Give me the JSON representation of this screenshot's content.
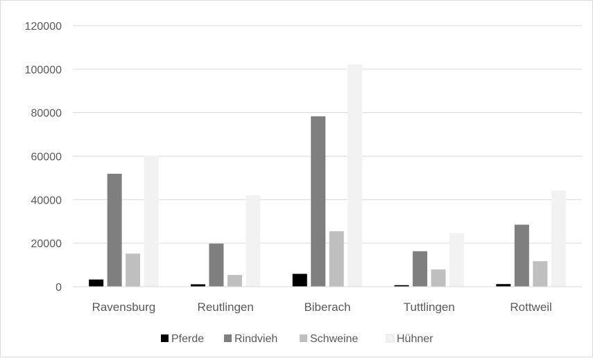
{
  "chart_data": {
    "type": "bar",
    "categories": [
      "Ravensburg",
      "Reutlingen",
      "Biberach",
      "Tuttlingen",
      "Rottweil"
    ],
    "series": [
      {
        "name": "Pferde",
        "color": "#000000",
        "values": [
          3300,
          1100,
          5900,
          700,
          1200
        ]
      },
      {
        "name": "Rindvieh",
        "color": "#7f7f7f",
        "values": [
          51900,
          19800,
          78300,
          16300,
          28500
        ]
      },
      {
        "name": "Schweine",
        "color": "#bfbfbf",
        "values": [
          15200,
          5400,
          25500,
          7900,
          11700
        ]
      },
      {
        "name": "Hühner",
        "color": "#f2f2f2",
        "values": [
          60300,
          42000,
          102300,
          24700,
          44200
        ]
      }
    ],
    "ylim": [
      0,
      120000
    ],
    "yticks": [
      "0",
      "20000",
      "40000",
      "60000",
      "80000",
      "100000",
      "120000"
    ],
    "grid": true,
    "legend_position": "bottom"
  }
}
